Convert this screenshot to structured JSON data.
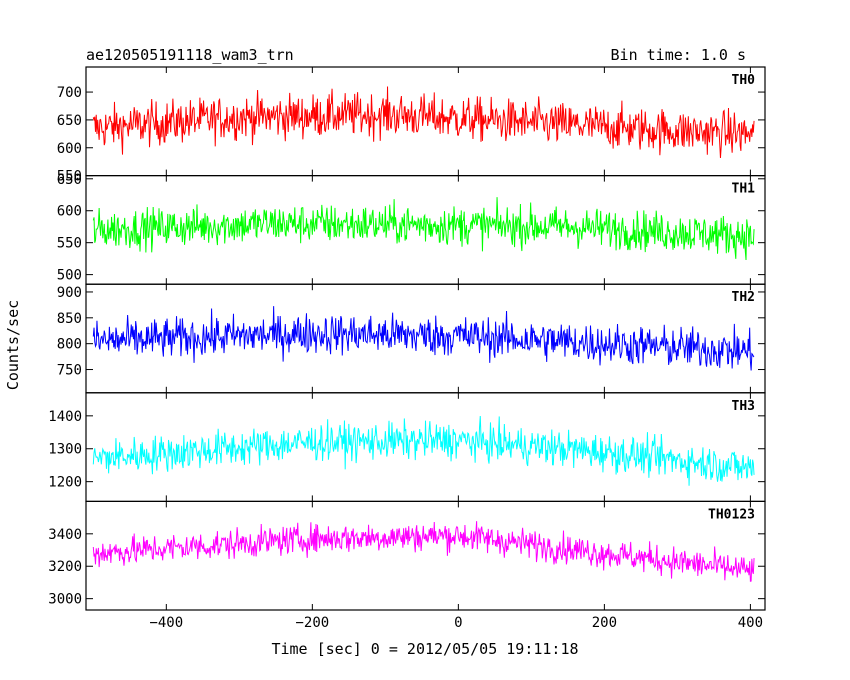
{
  "chart_data": {
    "type": "line",
    "title": "ae120505191118_wam3_trn",
    "bin_label": "Bin time: 1.0 s",
    "xlabel": "Time [sec] 0 = 2012/05/05 19:11:18",
    "ylabel": "Counts/sec",
    "xlim": [
      -510,
      420
    ],
    "x_start": -500,
    "x_end": 405,
    "x_step": 1,
    "x_ticks": [
      -400,
      -200,
      0,
      200,
      400
    ],
    "x_tick_labels": [
      "−400",
      "−200",
      "0",
      "200",
      "400"
    ],
    "grid": false,
    "series": [
      {
        "name": "TH0",
        "color": "#ff0000",
        "ylim": [
          550,
          745
        ],
        "mean": [
          [
            -500,
            635
          ],
          [
            -300,
            655
          ],
          [
            -100,
            660
          ],
          [
            100,
            645
          ],
          [
            300,
            630
          ],
          [
            405,
            625
          ]
        ],
        "noise": 28,
        "y_ticks": [
          550,
          600,
          650,
          700
        ]
      },
      {
        "name": "TH1",
        "color": "#00ff00",
        "ylim": [
          485,
          655
        ],
        "mean": [
          [
            -500,
            570
          ],
          [
            -250,
            580
          ],
          [
            -50,
            578
          ],
          [
            150,
            575
          ],
          [
            405,
            560
          ]
        ],
        "noise": 22,
        "y_ticks": [
          500,
          550,
          600,
          650
        ]
      },
      {
        "name": "TH2",
        "color": "#0000ff",
        "ylim": [
          705,
          915
        ],
        "mean": [
          [
            -500,
            805
          ],
          [
            -200,
            820
          ],
          [
            0,
            815
          ],
          [
            200,
            800
          ],
          [
            405,
            785
          ]
        ],
        "noise": 28,
        "y_ticks": [
          750,
          800,
          850,
          900
        ]
      },
      {
        "name": "TH3",
        "color": "#00ffff",
        "ylim": [
          1140,
          1470
        ],
        "mean": [
          [
            -500,
            1270
          ],
          [
            -200,
            1320
          ],
          [
            0,
            1325
          ],
          [
            200,
            1290
          ],
          [
            405,
            1240
          ]
        ],
        "noise": 40,
        "y_ticks": [
          1200,
          1300,
          1400
        ]
      },
      {
        "name": "TH0123",
        "color": "#ff00ff",
        "ylim": [
          2930,
          3600
        ],
        "mean": [
          [
            -500,
            3280
          ],
          [
            -200,
            3370
          ],
          [
            0,
            3390
          ],
          [
            200,
            3280
          ],
          [
            405,
            3170
          ]
        ],
        "noise": 65,
        "y_ticks": [
          3000,
          3200,
          3400
        ]
      }
    ]
  }
}
